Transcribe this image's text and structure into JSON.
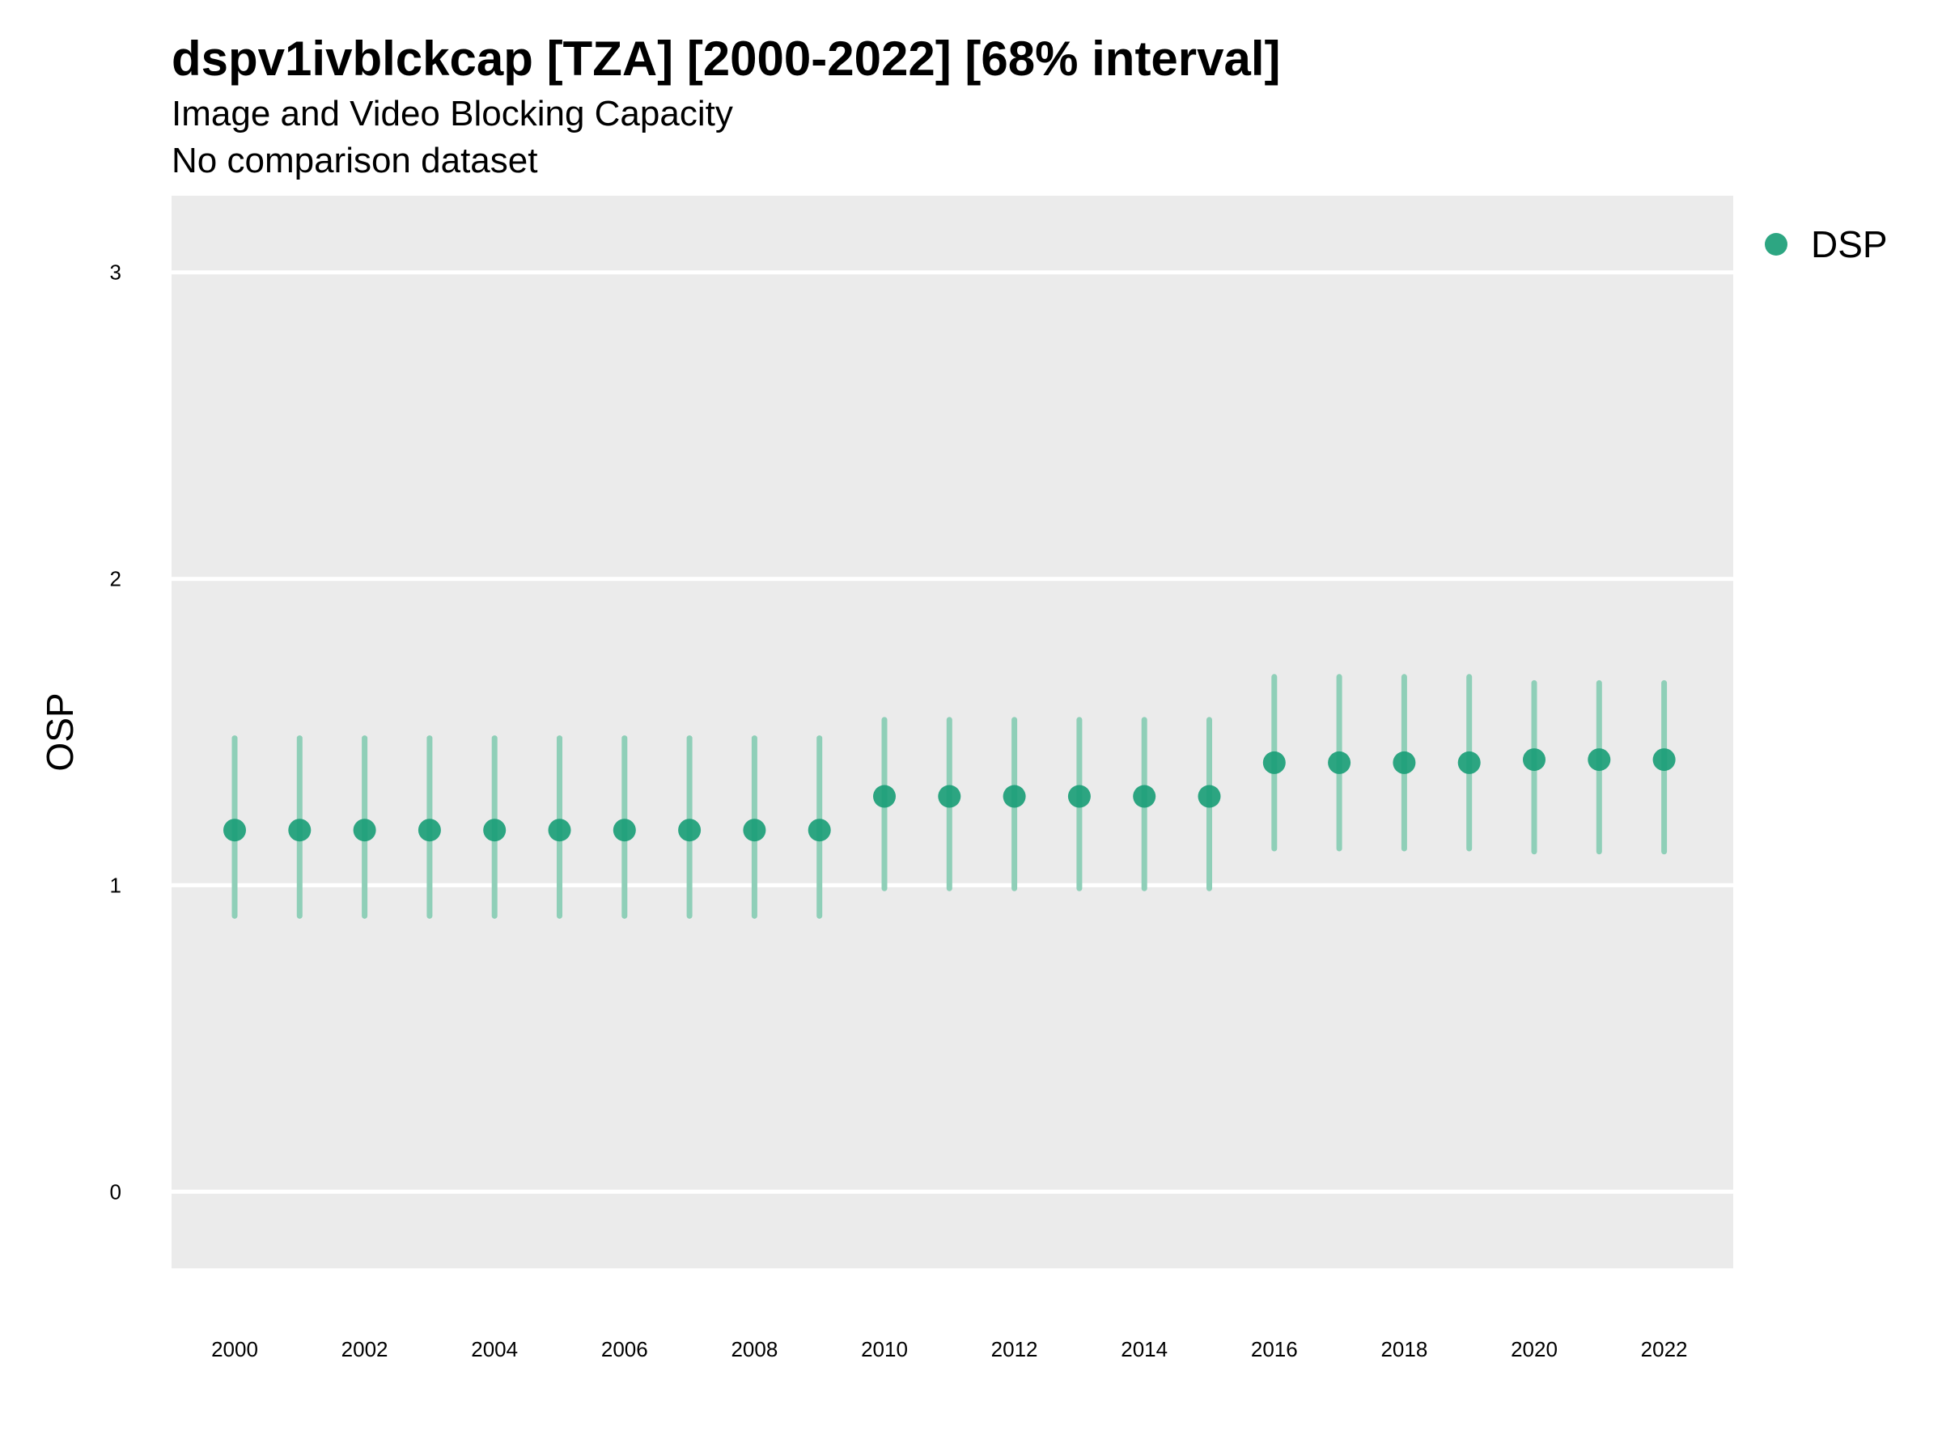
{
  "chart_data": {
    "type": "scatter",
    "title": "dspv1ivblckcap [TZA] [2000-2022] [68% interval]",
    "subtitle": [
      "Image and Video Blocking Capacity",
      "No comparison dataset"
    ],
    "xlabel": "",
    "ylabel": "OSP",
    "ylim": [
      -0.25,
      3.25
    ],
    "xlim": [
      1999,
      2023
    ],
    "y_ticks": [
      0,
      1,
      2,
      3
    ],
    "x_ticks": [
      2000,
      2002,
      2004,
      2006,
      2008,
      2010,
      2012,
      2014,
      2016,
      2018,
      2020,
      2022
    ],
    "grid": true,
    "legend_position": "right",
    "series": [
      {
        "name": "DSP",
        "color": "#1b9e77",
        "points": [
          {
            "x": 2000,
            "y": 1.18,
            "lo": 0.9,
            "hi": 1.48
          },
          {
            "x": 2001,
            "y": 1.18,
            "lo": 0.9,
            "hi": 1.48
          },
          {
            "x": 2002,
            "y": 1.18,
            "lo": 0.9,
            "hi": 1.48
          },
          {
            "x": 2003,
            "y": 1.18,
            "lo": 0.9,
            "hi": 1.48
          },
          {
            "x": 2004,
            "y": 1.18,
            "lo": 0.9,
            "hi": 1.48
          },
          {
            "x": 2005,
            "y": 1.18,
            "lo": 0.9,
            "hi": 1.48
          },
          {
            "x": 2006,
            "y": 1.18,
            "lo": 0.9,
            "hi": 1.48
          },
          {
            "x": 2007,
            "y": 1.18,
            "lo": 0.9,
            "hi": 1.48
          },
          {
            "x": 2008,
            "y": 1.18,
            "lo": 0.9,
            "hi": 1.48
          },
          {
            "x": 2009,
            "y": 1.18,
            "lo": 0.9,
            "hi": 1.48
          },
          {
            "x": 2010,
            "y": 1.29,
            "lo": 0.99,
            "hi": 1.54
          },
          {
            "x": 2011,
            "y": 1.29,
            "lo": 0.99,
            "hi": 1.54
          },
          {
            "x": 2012,
            "y": 1.29,
            "lo": 0.99,
            "hi": 1.54
          },
          {
            "x": 2013,
            "y": 1.29,
            "lo": 0.99,
            "hi": 1.54
          },
          {
            "x": 2014,
            "y": 1.29,
            "lo": 0.99,
            "hi": 1.54
          },
          {
            "x": 2015,
            "y": 1.29,
            "lo": 0.99,
            "hi": 1.54
          },
          {
            "x": 2016,
            "y": 1.4,
            "lo": 1.12,
            "hi": 1.68
          },
          {
            "x": 2017,
            "y": 1.4,
            "lo": 1.12,
            "hi": 1.68
          },
          {
            "x": 2018,
            "y": 1.4,
            "lo": 1.12,
            "hi": 1.68
          },
          {
            "x": 2019,
            "y": 1.4,
            "lo": 1.12,
            "hi": 1.68
          },
          {
            "x": 2020,
            "y": 1.41,
            "lo": 1.11,
            "hi": 1.66
          },
          {
            "x": 2021,
            "y": 1.41,
            "lo": 1.11,
            "hi": 1.66
          },
          {
            "x": 2022,
            "y": 1.41,
            "lo": 1.11,
            "hi": 1.66
          }
        ]
      }
    ],
    "colors": {
      "panel_background": "#ebebeb",
      "grid_line": "#ffffff",
      "interval": "#8fcfb8",
      "point": "#1b9e77"
    }
  }
}
